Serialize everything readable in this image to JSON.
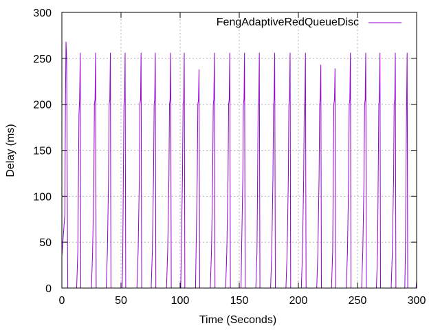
{
  "chart_data": {
    "type": "line",
    "title": "",
    "xlabel": "Time (Seconds)",
    "ylabel": "Delay (ms)",
    "xlim": [
      0,
      300
    ],
    "ylim": [
      0,
      300
    ],
    "x_ticks": [
      0,
      50,
      100,
      150,
      200,
      250,
      300
    ],
    "y_ticks": [
      0,
      50,
      100,
      150,
      200,
      250,
      300
    ],
    "grid": true,
    "legend_position": "top-right",
    "series": [
      {
        "name": "FengAdaptiveRedQueueDisc",
        "color": "#9400d3",
        "x": [
          0,
          2.5,
          3.0,
          3.5,
          4.0,
          5.0,
          6.0,
          12.5,
          13.5,
          14.0,
          14.5,
          15.0,
          15.5,
          16.0,
          17.0,
          25.0,
          26.0,
          27.0,
          27.5,
          28.0,
          28.5,
          29.0,
          30.0,
          37.5,
          38.5,
          39.5,
          40.0,
          40.5,
          41.0,
          41.5,
          42.0,
          51.0,
          51.5,
          52.0,
          52.5,
          53.0,
          53.5,
          54.0,
          55.0,
          63.5,
          64.5,
          65.5,
          66.0,
          66.5,
          67.0,
          67.5,
          68.0,
          75.5,
          76.5,
          77.5,
          78.0,
          78.5,
          79.0,
          79.5,
          80.0,
          88.5,
          89.5,
          90.5,
          91.0,
          91.5,
          92.0,
          92.5,
          93.0,
          100.5,
          101.0,
          102.0,
          102.5,
          103.0,
          103.5,
          104.0,
          105.0,
          113.0,
          113.5,
          114.5,
          115.0,
          115.5,
          116.0,
          116.5,
          117.0,
          125.5,
          126.5,
          127.5,
          128.0,
          128.5,
          129.0,
          129.5,
          130.0,
          138.5,
          139.5,
          140.5,
          141.0,
          141.5,
          142.0,
          142.5,
          143.0,
          151.5,
          152.0,
          153.0,
          153.5,
          154.0,
          154.5,
          155.0,
          156.0,
          164.0,
          165.0,
          165.5,
          166.0,
          166.5,
          167.0,
          167.5,
          168.0,
          176.5,
          177.5,
          178.5,
          179.0,
          179.5,
          180.0,
          180.5,
          181.0,
          189.5,
          190.5,
          191.5,
          192.0,
          192.5,
          193.0,
          193.5,
          194.0,
          202.5,
          203.5,
          204.5,
          205.0,
          205.5,
          206.0,
          206.5,
          207.0,
          215.5,
          216.5,
          217.5,
          218.0,
          218.5,
          219.0,
          219.5,
          220.0,
          228.0,
          229.0,
          229.5,
          230.0,
          230.5,
          231.0,
          231.5,
          232.0,
          240.5,
          241.5,
          242.5,
          243.0,
          243.5,
          244.0,
          244.5,
          245.0,
          253.5,
          254.5,
          255.5,
          256.0,
          256.5,
          257.0,
          257.5,
          258.0,
          266.0,
          267.0,
          267.5,
          268.0,
          268.5,
          269.0,
          269.5,
          270.0,
          278.5,
          279.5,
          280.5,
          281.0,
          281.5,
          282.0,
          282.5,
          283.0,
          290.0,
          290.5,
          291.0,
          291.5,
          292.0,
          292.5,
          293.0,
          299.5,
          300.0
        ],
        "y": [
          35,
          80,
          200,
          268,
          250,
          0,
          0,
          0,
          40,
          120,
          190,
          205,
          256,
          0,
          0,
          0,
          40,
          110,
          200,
          205,
          256,
          0,
          0,
          0,
          40,
          120,
          200,
          205,
          256,
          0,
          0,
          0,
          40,
          120,
          200,
          205,
          256,
          0,
          0,
          0,
          40,
          120,
          200,
          205,
          256,
          0,
          0,
          0,
          40,
          120,
          200,
          205,
          256,
          0,
          0,
          0,
          40,
          120,
          200,
          205,
          256,
          0,
          0,
          0,
          40,
          120,
          200,
          205,
          256,
          0,
          0,
          0,
          40,
          120,
          200,
          205,
          238,
          0,
          0,
          0,
          40,
          120,
          200,
          205,
          256,
          0,
          0,
          0,
          40,
          120,
          200,
          205,
          256,
          0,
          0,
          0,
          40,
          120,
          200,
          205,
          256,
          0,
          0,
          0,
          40,
          120,
          200,
          205,
          256,
          0,
          0,
          0,
          40,
          120,
          200,
          205,
          256,
          0,
          0,
          0,
          40,
          120,
          200,
          205,
          256,
          0,
          0,
          0,
          40,
          120,
          200,
          205,
          256,
          0,
          0,
          0,
          40,
          120,
          200,
          205,
          243,
          0,
          0,
          0,
          40,
          120,
          200,
          205,
          239,
          0,
          0,
          0,
          40,
          120,
          200,
          205,
          256,
          0,
          0,
          0,
          40,
          120,
          200,
          205,
          256,
          0,
          0,
          0,
          40,
          120,
          200,
          205,
          256,
          0,
          0,
          0,
          40,
          120,
          200,
          205,
          256,
          0,
          0,
          0,
          40,
          120,
          200,
          256,
          0,
          0,
          0,
          8
        ]
      }
    ]
  }
}
